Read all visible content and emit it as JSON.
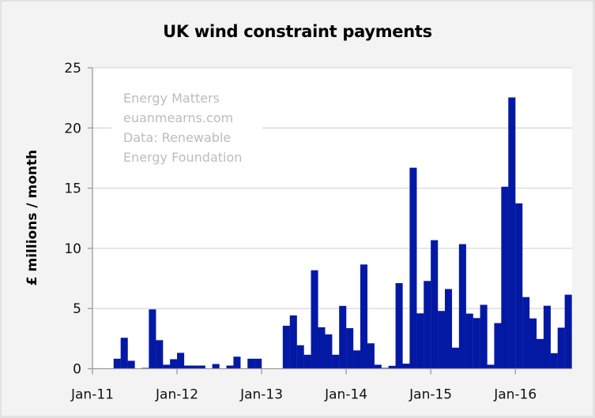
{
  "chart_data": {
    "type": "bar",
    "title": "UK wind constraint payments",
    "xlabel": "",
    "ylabel": "£ millions / month",
    "ylim": [
      0,
      25
    ],
    "yticks": [
      0,
      5,
      10,
      15,
      20,
      25
    ],
    "xtick_labels": [
      "Jan-11",
      "Jan-12",
      "Jan-13",
      "Jan-14",
      "Jan-15",
      "Jan-16"
    ],
    "grid": "horizontal",
    "legend": "none",
    "bar_color": "#0319a3",
    "annotation": [
      "Energy Matters",
      "euanmearns.com",
      "Data: Renewable",
      "Energy Foundation"
    ],
    "start_month": "Jan-11",
    "end_month": "Aug-16",
    "categories": [
      "Jan-11",
      "Feb-11",
      "Mar-11",
      "Apr-11",
      "May-11",
      "Jun-11",
      "Jul-11",
      "Aug-11",
      "Sep-11",
      "Oct-11",
      "Nov-11",
      "Dec-11",
      "Jan-12",
      "Feb-12",
      "Mar-12",
      "Apr-12",
      "May-12",
      "Jun-12",
      "Jul-12",
      "Aug-12",
      "Sep-12",
      "Oct-12",
      "Nov-12",
      "Dec-12",
      "Jan-13",
      "Feb-13",
      "Mar-13",
      "Apr-13",
      "May-13",
      "Jun-13",
      "Jul-13",
      "Aug-13",
      "Sep-13",
      "Oct-13",
      "Nov-13",
      "Dec-13",
      "Jan-14",
      "Feb-14",
      "Mar-14",
      "Apr-14",
      "May-14",
      "Jun-14",
      "Jul-14",
      "Aug-14",
      "Sep-14",
      "Oct-14",
      "Nov-14",
      "Dec-14",
      "Jan-15",
      "Feb-15",
      "Mar-15",
      "Apr-15",
      "May-15",
      "Jun-15",
      "Jul-15",
      "Aug-15",
      "Sep-15",
      "Oct-15",
      "Nov-15",
      "Dec-15",
      "Jan-16",
      "Feb-16",
      "Mar-16",
      "Apr-16",
      "May-16",
      "Jun-16",
      "Jul-16",
      "Aug-16"
    ],
    "values": [
      0,
      0,
      0,
      0.83,
      2.57,
      0.66,
      0,
      0.07,
      4.93,
      2.37,
      0.33,
      0.79,
      1.32,
      0.26,
      0.26,
      0.26,
      0,
      0.39,
      0,
      0.26,
      1.0,
      0,
      0.83,
      0.83,
      0,
      0,
      0,
      3.57,
      4.43,
      1.95,
      1.16,
      8.18,
      3.44,
      2.85,
      1.16,
      5.22,
      3.37,
      1.52,
      8.66,
      2.11,
      0.33,
      0.07,
      0.24,
      7.11,
      0.42,
      16.7,
      4.6,
      7.29,
      10.68,
      4.8,
      6.62,
      1.75,
      10.35,
      4.58,
      4.21,
      5.31,
      0.33,
      3.79,
      15.12,
      22.54,
      13.74,
      5.95,
      4.18,
      2.47,
      5.23,
      1.29,
      3.41,
      6.15
    ]
  }
}
